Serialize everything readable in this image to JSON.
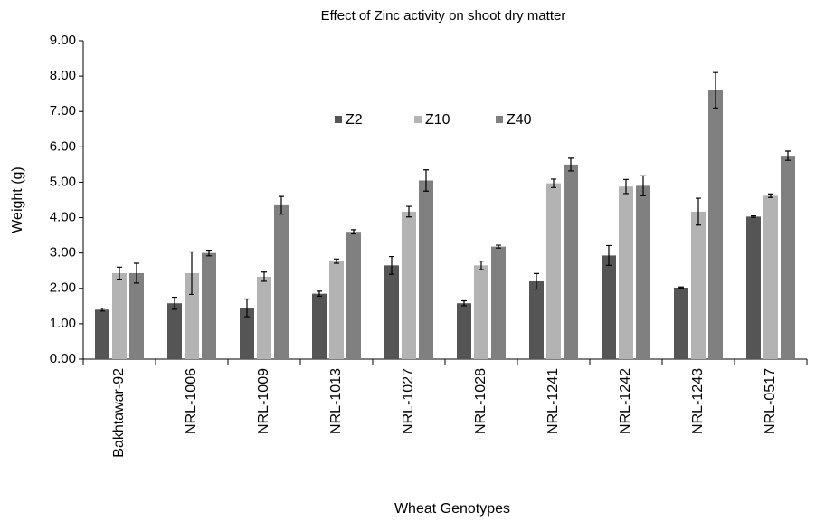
{
  "chart_data": {
    "type": "bar",
    "title": "Effect of Zinc activity on shoot dry matter",
    "x_label": "Wheat Genotypes",
    "y_label": "Weight (g)",
    "categories": [
      "Bakhtawar-92",
      "NRL-1006",
      "NRL-1009",
      "NRL-1013",
      "NRL-1027",
      "NRL-1028",
      "NRL-1241",
      "NRL-1242",
      "NRL-1243",
      "NRL-0517"
    ],
    "series": [
      {
        "name": "Z2",
        "color": "#555555",
        "values": [
          1.4,
          1.58,
          1.45,
          1.85,
          2.65,
          1.58,
          2.2,
          2.93,
          2.02,
          4.03
        ],
        "errors": [
          0.04,
          0.17,
          0.25,
          0.07,
          0.25,
          0.07,
          0.22,
          0.28,
          0.02,
          0.02
        ]
      },
      {
        "name": "Z10",
        "color": "#b3b3b3",
        "values": [
          2.43,
          2.43,
          2.33,
          2.77,
          4.17,
          2.65,
          4.97,
          4.88,
          4.17,
          4.62
        ],
        "errors": [
          0.17,
          0.6,
          0.13,
          0.06,
          0.15,
          0.12,
          0.12,
          0.2,
          0.38,
          0.05
        ]
      },
      {
        "name": "Z40",
        "color": "#808080",
        "values": [
          2.43,
          3.0,
          4.35,
          3.6,
          5.05,
          3.18,
          5.5,
          4.9,
          7.6,
          5.75
        ],
        "errors": [
          0.28,
          0.08,
          0.25,
          0.06,
          0.3,
          0.04,
          0.18,
          0.28,
          0.5,
          0.13
        ]
      }
    ],
    "ylim": [
      0,
      9
    ],
    "yticks": [
      {
        "value": 0,
        "label": "0.00"
      },
      {
        "value": 1,
        "label": "1.00"
      },
      {
        "value": 2,
        "label": "2.00"
      },
      {
        "value": 3,
        "label": "3.00"
      },
      {
        "value": 4,
        "label": "4.00"
      },
      {
        "value": 5,
        "label": "5.00"
      },
      {
        "value": 6,
        "label": "6.00"
      },
      {
        "value": 7,
        "label": "7.00"
      },
      {
        "value": 8,
        "label": "8.00"
      },
      {
        "value": 9,
        "label": "9.00"
      }
    ],
    "legend": "top"
  }
}
